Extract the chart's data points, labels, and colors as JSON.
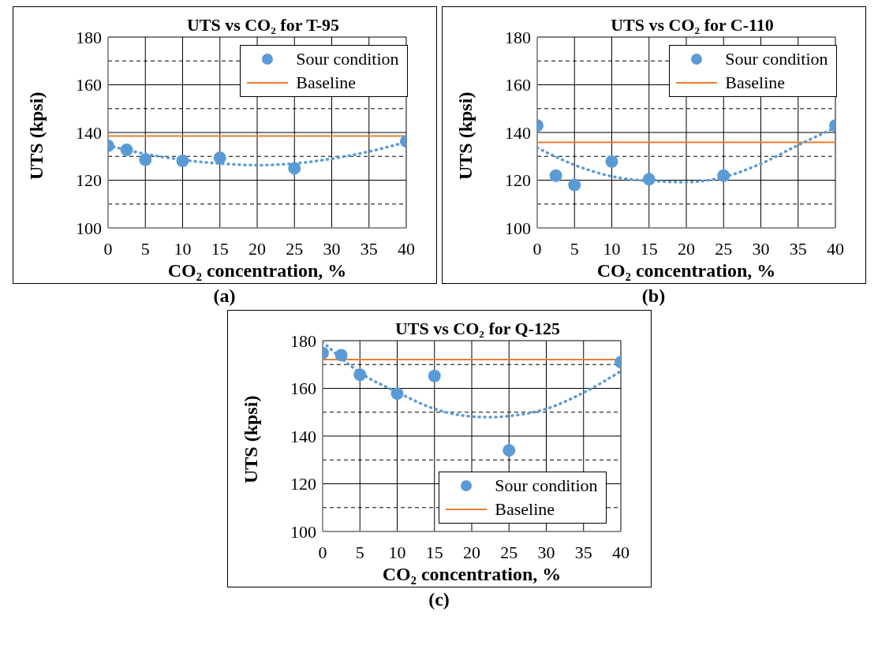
{
  "chart_data": [
    {
      "type": "scatter",
      "title": "UTS vs CO₂ for T-95",
      "xlabel": "CO₂ concentration, %",
      "ylabel": "UTS (kpsi)",
      "annotations": [
        "(a)"
      ],
      "x": [
        0,
        2.5,
        5,
        10,
        15,
        25,
        40
      ],
      "series": [
        {
          "name": "Sour condition",
          "type": "scatter",
          "marker": "circle",
          "color": "#5b9bd5",
          "values": [
            134.4,
            132.7,
            128.6,
            128.1,
            129.4,
            125.0,
            136.3
          ]
        },
        {
          "name": "Baseline",
          "type": "line",
          "line_style": "solid",
          "color": "#ed7d31",
          "x": [
            0,
            40
          ],
          "values": [
            138.5,
            138.5
          ]
        },
        {
          "type": "line",
          "line_style": "dotted",
          "color": "#5b9bd5",
          "x": [
            0,
            5,
            10,
            15,
            20,
            25,
            30,
            35,
            40
          ],
          "values": [
            134.5,
            131,
            128.5,
            127,
            126.3,
            127,
            129,
            132,
            136
          ]
        }
      ],
      "xlim": [
        0,
        40
      ],
      "xticks": [
        0,
        5,
        10,
        15,
        20,
        25,
        30,
        35,
        40
      ],
      "ylim": [
        100,
        180
      ],
      "yticks": [
        100,
        {
          "value": 110,
          "label": null
        },
        120,
        {
          "value": 130,
          "label": null
        },
        140,
        {
          "value": 150,
          "label": null
        },
        160,
        {
          "value": 170,
          "label": null
        },
        180
      ],
      "grid": true,
      "legend": "top right"
    },
    {
      "type": "scatter",
      "title": "UTS vs CO₂ for C-110",
      "xlabel": "CO₂ concentration, %",
      "ylabel": "UTS (kpsi)",
      "annotations": [
        "(b)"
      ],
      "x": [
        0,
        2.5,
        5,
        10,
        15,
        25,
        40
      ],
      "series": [
        {
          "name": "Sour condition",
          "type": "scatter",
          "marker": "circle",
          "color": "#5b9bd5",
          "values": [
            142.9,
            121.9,
            118.0,
            127.8,
            120.4,
            121.9,
            142.9
          ]
        },
        {
          "name": "Baseline",
          "type": "line",
          "line_style": "solid",
          "color": "#ed7d31",
          "x": [
            0,
            40
          ],
          "values": [
            135.9,
            135.9
          ]
        },
        {
          "type": "line",
          "line_style": "dotted",
          "color": "#5b9bd5",
          "x": [
            0,
            5,
            10,
            15,
            20,
            25,
            30,
            35,
            40
          ],
          "values": [
            133.6,
            126.4,
            121.6,
            119.7,
            119.2,
            121.3,
            126.9,
            134.7,
            142
          ]
        }
      ],
      "xlim": [
        0,
        40
      ],
      "xticks": [
        0,
        5,
        10,
        15,
        20,
        25,
        30,
        35,
        40
      ],
      "ylim": [
        100,
        180
      ],
      "yticks": [
        100,
        {
          "value": 110,
          "label": null
        },
        120,
        {
          "value": 130,
          "label": null
        },
        140,
        {
          "value": 150,
          "label": null
        },
        160,
        {
          "value": 170,
          "label": null
        },
        180
      ],
      "grid": true,
      "legend": "top right"
    },
    {
      "type": "scatter",
      "title": "UTS vs CO₂ for Q-125",
      "xlabel": "CO₂ concentration, %",
      "ylabel": "UTS (kpsi)",
      "annotations": [
        "(c)"
      ],
      "x": [
        0,
        2.5,
        5,
        10,
        15,
        25,
        40
      ],
      "series": [
        {
          "name": "Sour condition",
          "type": "scatter",
          "marker": "circle",
          "color": "#5b9bd5",
          "values": [
            174.8,
            173.9,
            165.7,
            157.8,
            165.2,
            134.0,
            171.0
          ]
        },
        {
          "name": "Baseline",
          "type": "line",
          "line_style": "solid",
          "color": "#ed7d31",
          "x": [
            0,
            40
          ],
          "values": [
            172.1,
            172.1
          ]
        },
        {
          "type": "line",
          "line_style": "dotted",
          "color": "#5b9bd5",
          "x": [
            0,
            5,
            10,
            15,
            20,
            22.5,
            25,
            30,
            35,
            40
          ],
          "values": [
            179.5,
            166.6,
            158.4,
            151.4,
            148.2,
            147.9,
            148.4,
            151.4,
            158.2,
            167.2
          ]
        }
      ],
      "xlim": [
        0,
        40
      ],
      "xticks": [
        0,
        5,
        10,
        15,
        20,
        25,
        30,
        35,
        40
      ],
      "ylim": [
        100,
        180
      ],
      "yticks": [
        100,
        {
          "value": 110,
          "label": null
        },
        120,
        {
          "value": 130,
          "label": null
        },
        140,
        {
          "value": 150,
          "label": null
        },
        160,
        {
          "value": 170,
          "label": null
        },
        180
      ],
      "grid": true,
      "legend": "bottom right"
    }
  ]
}
